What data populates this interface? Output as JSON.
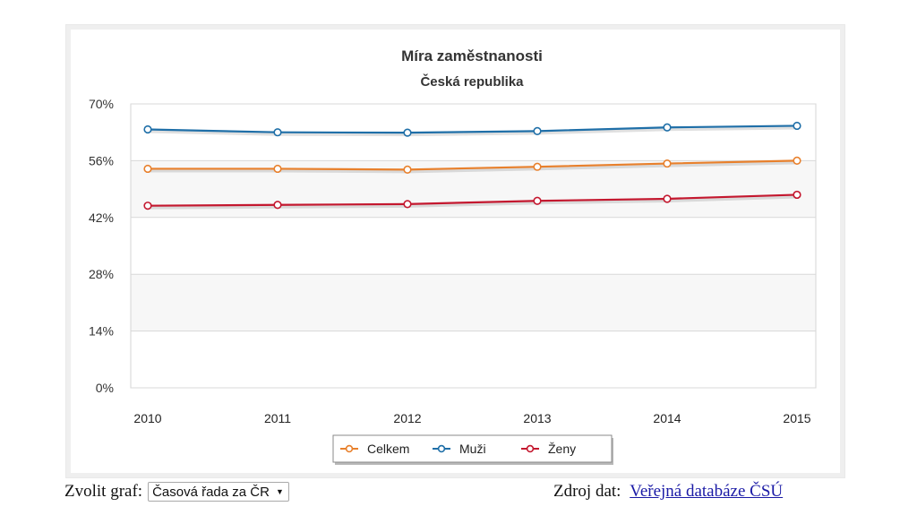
{
  "chart_data": {
    "type": "line",
    "title": "Míra zaměstnanosti",
    "subtitle": "Česká republika",
    "categories": [
      "2010",
      "2011",
      "2012",
      "2013",
      "2014",
      "2015"
    ],
    "y_ticks": [
      "0%",
      "14%",
      "28%",
      "42%",
      "56%",
      "70%"
    ],
    "ylim": [
      0,
      70
    ],
    "y_unit": "%",
    "grid": true,
    "legend_position": "bottom",
    "series": [
      {
        "name": "Celkem",
        "color": "#e8802c",
        "values": [
          54.0,
          54.0,
          53.8,
          54.5,
          55.3,
          56.0
        ]
      },
      {
        "name": "Muži",
        "color": "#1f6fa8",
        "values": [
          63.7,
          63.0,
          62.9,
          63.3,
          64.2,
          64.6
        ]
      },
      {
        "name": "Ženy",
        "color": "#c4182f",
        "values": [
          44.9,
          45.1,
          45.3,
          46.1,
          46.6,
          47.6
        ]
      }
    ]
  },
  "footer": {
    "select_label": "Zvolit graf:",
    "select_value": "Časová řada za ČR",
    "source_label": "Zdroj dat:",
    "source_link": "Veřejná databáze ČSÚ"
  }
}
